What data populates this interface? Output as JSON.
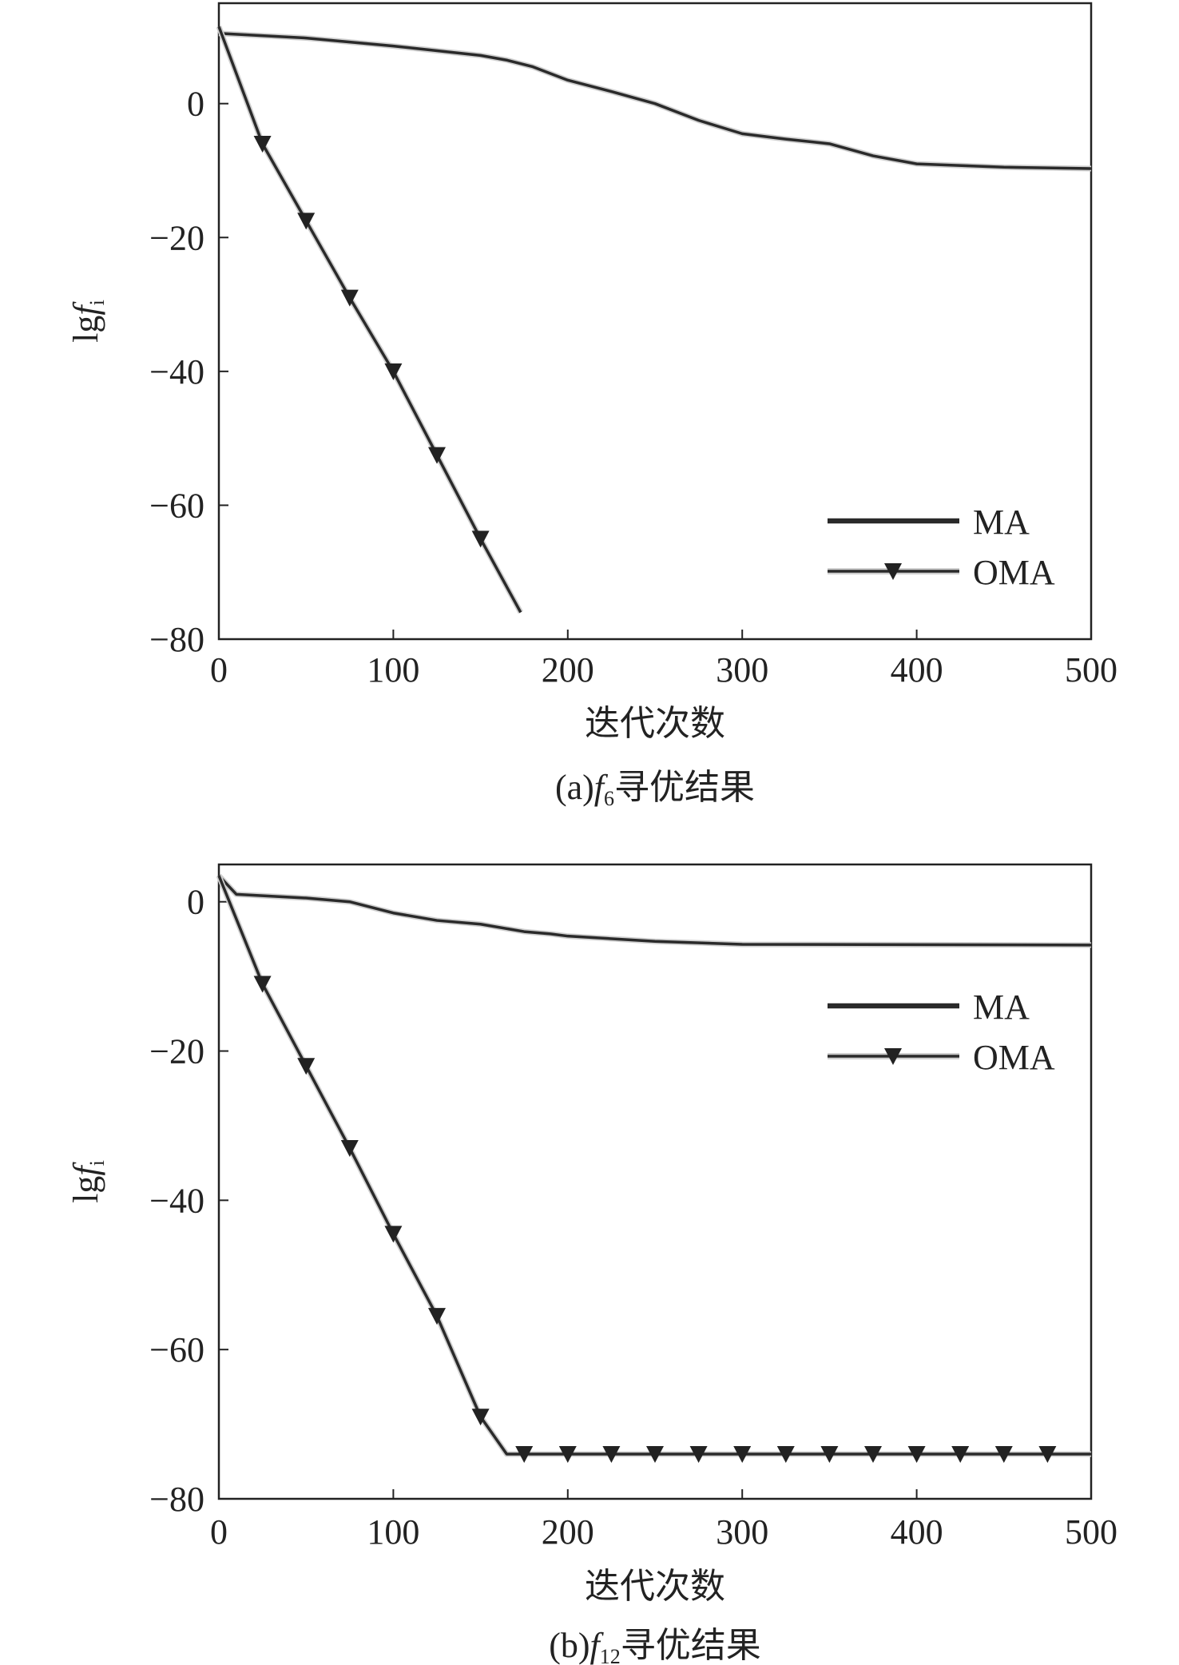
{
  "chart_data": [
    {
      "type": "line",
      "title": "",
      "caption": "(a) f6寻优结果",
      "caption_prefix": "(a)",
      "caption_func": "f",
      "caption_sub": "6",
      "caption_suffix": "寻优结果",
      "xlabel": "迭代次数",
      "ylabel": "lgf",
      "ylabel_sub": "i",
      "xlim": [
        0,
        500
      ],
      "ylim": [
        -80,
        15
      ],
      "xticks": [
        0,
        100,
        200,
        300,
        400,
        500
      ],
      "yticks": [
        0,
        -20,
        -40,
        -60,
        -80
      ],
      "ytick_labels": [
        "0",
        "−20",
        "−40",
        "−60",
        "−80"
      ],
      "legend_position": "bottom-right",
      "series": [
        {
          "name": "MA",
          "marker": "none",
          "x": [
            0,
            50,
            100,
            150,
            165,
            180,
            200,
            225,
            250,
            275,
            300,
            325,
            350,
            375,
            400,
            450,
            500
          ],
          "y": [
            10.5,
            9.8,
            8.6,
            7.2,
            6.5,
            5.5,
            3.5,
            1.8,
            0,
            -2.5,
            -4.5,
            -5.3,
            -6,
            -7.8,
            -9,
            -9.5,
            -9.7
          ]
        },
        {
          "name": "OMA",
          "marker": "triangle-down",
          "x": [
            0,
            25,
            50,
            75,
            100,
            125,
            150,
            173
          ],
          "y": [
            11.5,
            -6,
            -17.5,
            -29,
            -40,
            -52.5,
            -65,
            -76
          ],
          "marker_x": [
            25,
            50,
            75,
            100,
            125,
            150
          ]
        }
      ]
    },
    {
      "type": "line",
      "title": "",
      "caption": "(b) f12寻优结果",
      "caption_prefix": "(b)",
      "caption_func": "f",
      "caption_sub": "12",
      "caption_suffix": "寻优结果",
      "xlabel": "迭代次数",
      "ylabel": "lgf",
      "ylabel_sub": "i",
      "xlim": [
        0,
        500
      ],
      "ylim": [
        -80,
        5
      ],
      "xticks": [
        0,
        100,
        200,
        300,
        400,
        500
      ],
      "yticks": [
        0,
        -20,
        -40,
        -60,
        -80
      ],
      "ytick_labels": [
        "0",
        "−20",
        "−40",
        "−60",
        "−80"
      ],
      "legend_position": "top-right",
      "series": [
        {
          "name": "MA",
          "marker": "none",
          "x": [
            0,
            10,
            50,
            75,
            100,
            125,
            150,
            175,
            190,
            200,
            250,
            300,
            500
          ],
          "y": [
            3.5,
            1,
            0.5,
            0,
            -1.5,
            -2.5,
            -3,
            -4,
            -4.3,
            -4.6,
            -5.3,
            -5.7,
            -5.8
          ]
        },
        {
          "name": "OMA",
          "marker": "triangle-down",
          "x": [
            0,
            25,
            50,
            75,
            100,
            125,
            150,
            165,
            500
          ],
          "y": [
            3.5,
            -11,
            -22,
            -33,
            -44.5,
            -55.5,
            -69,
            -74,
            -74
          ],
          "marker_x": [
            25,
            50,
            75,
            100,
            125,
            150,
            175,
            200,
            225,
            250,
            275,
            300,
            325,
            350,
            375,
            400,
            425,
            450,
            475
          ]
        }
      ]
    }
  ]
}
